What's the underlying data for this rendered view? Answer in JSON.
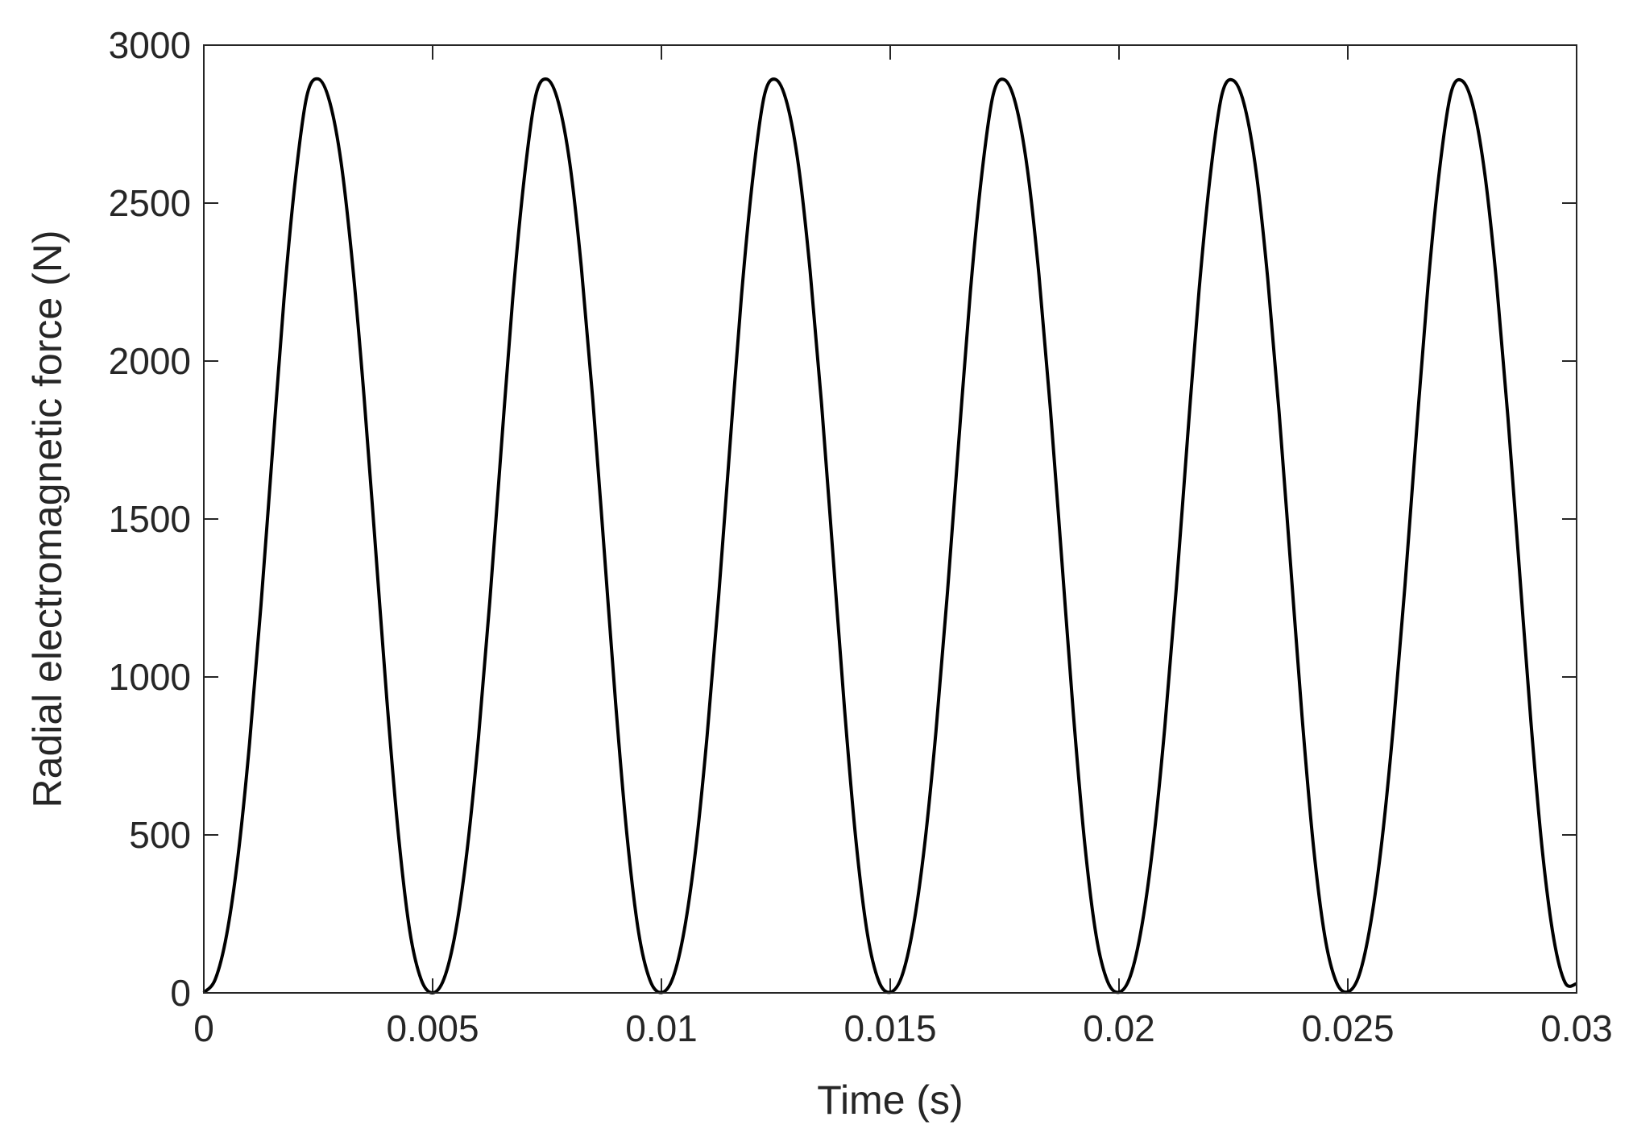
{
  "chart_data": {
    "type": "line",
    "title": "",
    "xlabel": "Time (s)",
    "ylabel": "Radial electromagnetic force (N)",
    "xlim": [
      0,
      0.03
    ],
    "ylim": [
      0,
      3000
    ],
    "xticks": [
      0,
      0.005,
      0.01,
      0.015,
      0.02,
      0.025,
      0.03
    ],
    "xtick_labels": [
      "0",
      "0.005",
      "0.01",
      "0.015",
      "0.02",
      "0.025",
      "0.03"
    ],
    "yticks": [
      0,
      500,
      1000,
      1500,
      2000,
      2500,
      3000
    ],
    "ytick_labels": [
      "0",
      "500",
      "1000",
      "1500",
      "2000",
      "2500",
      "3000"
    ],
    "grid": false,
    "series": [
      {
        "color": "#000000",
        "x": [
          0,
          0.00025,
          0.0005,
          0.00075,
          0.001,
          0.00125,
          0.0015,
          0.00175,
          0.002,
          0.00225,
          0.0025,
          0.00275,
          0.003,
          0.00325,
          0.0035,
          0.00375,
          0.004,
          0.00425,
          0.0045,
          0.00475,
          0.005,
          0.00525,
          0.0055,
          0.00575,
          0.006,
          0.00625,
          0.0065,
          0.00675,
          0.007,
          0.00725,
          0.0075,
          0.00775,
          0.008,
          0.00825,
          0.0085,
          0.00875,
          0.009,
          0.00925,
          0.0095,
          0.00975,
          0.01,
          0.01025,
          0.0105,
          0.01075,
          0.011,
          0.01125,
          0.0115,
          0.01175,
          0.012,
          0.01225,
          0.0125,
          0.01275,
          0.013,
          0.01325,
          0.0135,
          0.01375,
          0.014,
          0.01425,
          0.0145,
          0.01475,
          0.015,
          0.01525,
          0.0155,
          0.01575,
          0.016,
          0.01625,
          0.0165,
          0.01675,
          0.017,
          0.01725,
          0.0175,
          0.01775,
          0.018,
          0.01825,
          0.0185,
          0.01875,
          0.019,
          0.01925,
          0.0195,
          0.01975,
          0.02,
          0.02025,
          0.0205,
          0.02075,
          0.021,
          0.02125,
          0.0215,
          0.02175,
          0.022,
          0.02225,
          0.0225,
          0.02275,
          0.023,
          0.02325,
          0.0235,
          0.02375,
          0.024,
          0.02425,
          0.0245,
          0.02475,
          0.025,
          0.02525,
          0.0255,
          0.02575,
          0.026,
          0.02625,
          0.0265,
          0.02675,
          0.027,
          0.02725,
          0.0275,
          0.02775,
          0.028,
          0.02825,
          0.0285,
          0.02875,
          0.029,
          0.02925,
          0.0295,
          0.02975,
          0.03
        ],
        "y": [
          1,
          43,
          185,
          436,
          791,
          1229,
          1713,
          2192,
          2574,
          2838,
          2893,
          2821,
          2629,
          2306,
          1890,
          1413,
          928,
          505,
          197,
          42,
          0,
          45,
          193,
          447,
          804,
          1240,
          1725,
          2197,
          2576,
          2838,
          2892,
          2818,
          2624,
          2297,
          1879,
          1400,
          916,
          495,
          193,
          40,
          1,
          47,
          199,
          456,
          816,
          1253,
          1737,
          2207,
          2583,
          2841,
          2891,
          2813,
          2614,
          2285,
          1864,
          1385,
          902,
          484,
          188,
          37,
          2,
          51,
          206,
          466,
          828,
          1266,
          1749,
          2216,
          2589,
          2843,
          2890,
          2809,
          2605,
          2273,
          1849,
          1370,
          888,
          474,
          182,
          36,
          2,
          54,
          213,
          477,
          840,
          1278,
          1762,
          2225,
          2594,
          2844,
          2888,
          2804,
          2596,
          2261,
          1835,
          1355,
          875,
          463,
          177,
          34,
          3,
          57,
          221,
          487,
          852,
          1291,
          1774,
          2234,
          2600,
          2846,
          2887,
          2799,
          2586,
          2249,
          1820,
          1340,
          861,
          452,
          172,
          32,
          29
        ]
      }
    ]
  }
}
